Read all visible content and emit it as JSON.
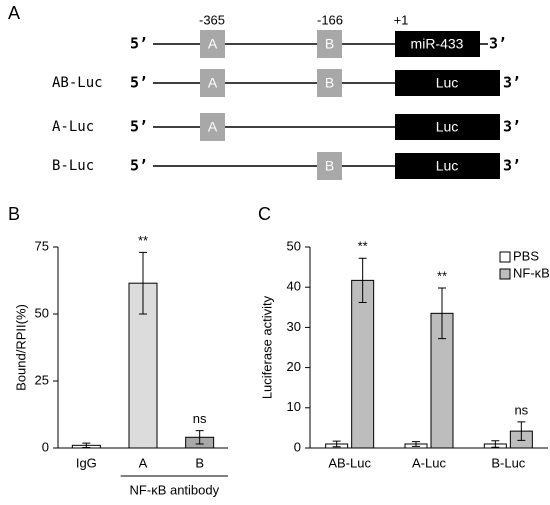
{
  "diagram": {
    "panel_label": "A",
    "positions": [
      "-365",
      "-166",
      "+1"
    ],
    "five_prime": "5’",
    "three_prime": "3’",
    "site_a": "A",
    "site_b": "B",
    "gene": "miR-433",
    "reporter": "Luc",
    "constructs": [
      "AB-Luc",
      "A-Luc",
      "B-Luc"
    ]
  },
  "chart_data": [
    {
      "type": "bar",
      "panel_label": "B",
      "y_label": "Bound/RPII(%)",
      "categories": [
        "IgG",
        "A",
        "B"
      ],
      "values": [
        1,
        61.5,
        4
      ],
      "errors": [
        0.8,
        11.5,
        2.5
      ],
      "colors": [
        "#ffffff",
        "#dcdcdc",
        "#a8a8a8"
      ],
      "annotations": [
        null,
        "**",
        "ns"
      ],
      "group_label": "NF-κB antibody",
      "ylim": [
        0,
        75
      ],
      "yticks": [
        0,
        25,
        50,
        75
      ]
    },
    {
      "type": "grouped_bar",
      "panel_label": "C",
      "y_label": "Luciferase activity",
      "categories": [
        "AB-Luc",
        "A-Luc",
        "B-Luc"
      ],
      "series": [
        {
          "name": "PBS",
          "color": "#ffffff",
          "values": [
            1,
            1,
            1
          ],
          "errors": [
            0.7,
            0.6,
            0.8
          ]
        },
        {
          "name": "NF-κB",
          "color": "#bdbdbd",
          "values": [
            41.7,
            33.5,
            4.2
          ],
          "errors": [
            5.5,
            6.3,
            2.3
          ],
          "annotations": [
            "**",
            "**",
            "ns"
          ]
        }
      ],
      "ylim": [
        0,
        50
      ],
      "yticks": [
        0,
        10,
        20,
        30,
        40,
        50
      ],
      "legend": "upper right"
    }
  ]
}
